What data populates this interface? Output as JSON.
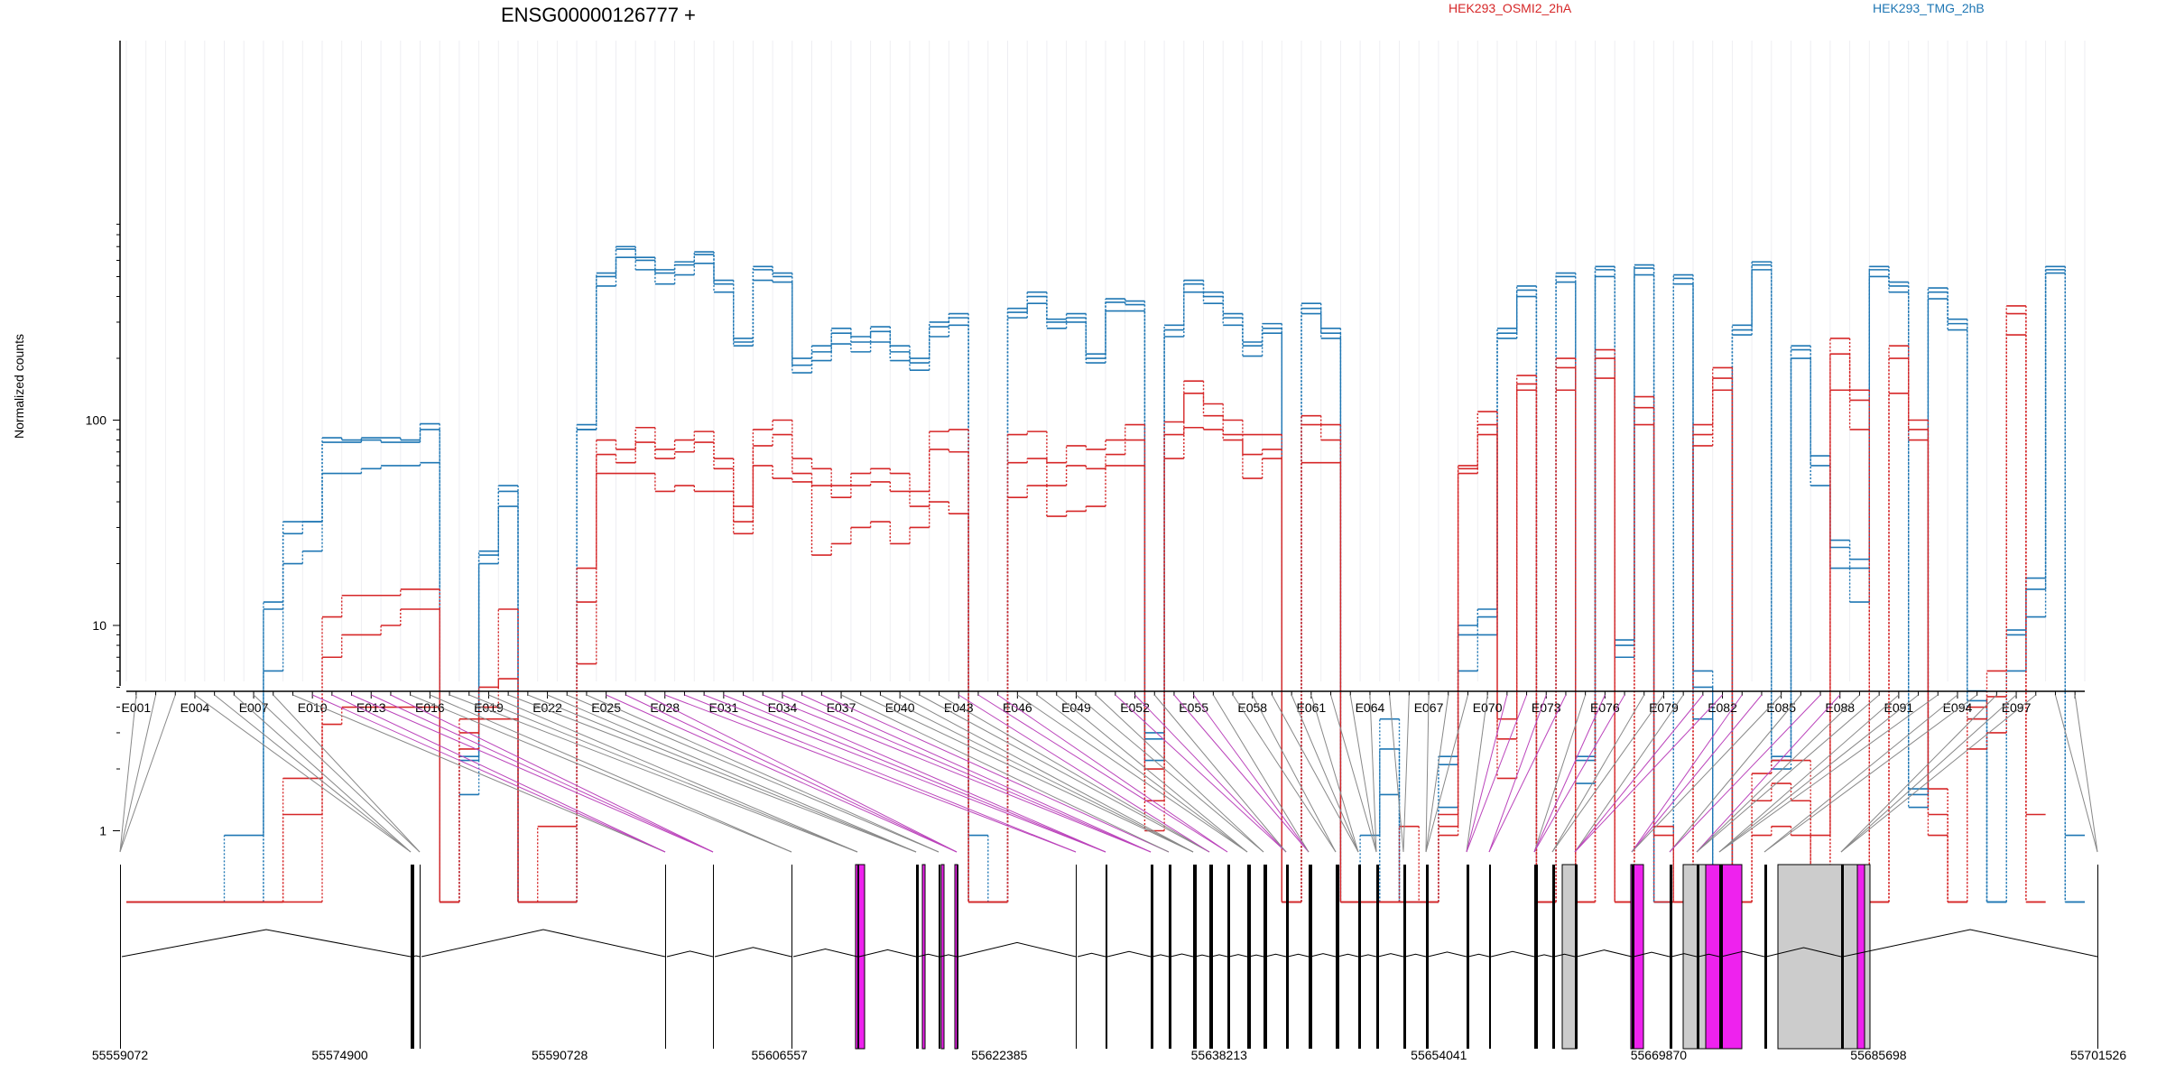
{
  "chart_data": {
    "type": "line",
    "title": "ENSG00000126777 +",
    "ylabel": "Normalized counts",
    "yscale": "log",
    "yticks": [
      "1",
      "10",
      "100"
    ],
    "grid": true,
    "legend": [
      "HEK293_OSMI2_2hA",
      "HEK293_TMG_2hB"
    ],
    "colors": {
      "HEK293_OSMI2_2hA": "#d62728",
      "HEK293_TMG_2hB": "#1f77b4",
      "exon_highlight": "#ee22ee",
      "exon_gray": "#cccccc"
    },
    "exon_labels": [
      "E001",
      "E004",
      "E007",
      "E010",
      "E013",
      "E016",
      "E019",
      "E022",
      "E025",
      "E028",
      "E031",
      "E034",
      "E037",
      "E040",
      "E043",
      "E046",
      "E049",
      "E052",
      "E055",
      "E058",
      "E061",
      "E064",
      "E067",
      "E070",
      "E073",
      "E076",
      "E079",
      "E082",
      "E085",
      "E088",
      "E091",
      "E094",
      "E097"
    ],
    "genomic_ticks": [
      "55559072",
      "55574900",
      "55590728",
      "55606557",
      "55622385",
      "55638213",
      "55654041",
      "55669870",
      "55685698",
      "55701526"
    ],
    "series": [
      {
        "name": "HEK293_TMG_2hB",
        "sample": 1,
        "values": [
          0.45,
          0.45,
          0.45,
          0.45,
          0.45,
          0.45,
          0.45,
          12,
          32,
          32,
          82,
          80,
          82,
          82,
          80,
          96,
          0.45,
          2.3,
          23,
          48,
          0.45,
          0.45,
          0.45,
          95,
          520,
          700,
          620,
          540,
          590,
          660,
          480,
          250,
          560,
          520,
          200,
          230,
          280,
          255,
          285,
          230,
          200,
          300,
          330,
          0.45,
          0.45,
          350,
          420,
          310,
          330,
          210,
          390,
          380,
          3,
          290,
          480,
          420,
          330,
          240,
          295,
          0.45,
          370,
          280,
          0.45,
          0.45,
          3.5,
          0.45,
          0.45,
          2.3,
          10,
          12,
          280,
          450,
          0.45,
          520,
          2.3,
          560,
          8.5,
          570,
          0.45,
          510,
          6,
          0.45,
          290,
          590,
          2.3,
          230,
          67,
          26,
          21,
          560,
          470,
          1.6,
          440,
          310,
          4.8,
          0.45,
          9.5,
          17,
          560,
          0.45
        ]
      },
      {
        "name": "HEK293_TMG_2hB",
        "sample": 2,
        "values": [
          0.45,
          0.45,
          0.45,
          0.45,
          0.45,
          0.95,
          0.95,
          13,
          28,
          32,
          78,
          78,
          80,
          78,
          78,
          90,
          0.45,
          2.2,
          22,
          45,
          0.45,
          0.45,
          0.45,
          90,
          500,
          680,
          600,
          520,
          570,
          640,
          460,
          240,
          540,
          500,
          185,
          215,
          265,
          240,
          270,
          215,
          190,
          285,
          315,
          0.95,
          0.45,
          335,
          400,
          300,
          315,
          200,
          375,
          365,
          2.8,
          275,
          460,
          400,
          315,
          230,
          280,
          0.45,
          350,
          265,
          0.45,
          0.95,
          2.5,
          0.45,
          0.45,
          2.1,
          9,
          11,
          265,
          430,
          0.45,
          500,
          2.2,
          540,
          8,
          550,
          0.45,
          490,
          5,
          0.45,
          275,
          570,
          2.2,
          220,
          60,
          24,
          19,
          540,
          450,
          1.5,
          420,
          295,
          4.3,
          0.45,
          9,
          15,
          540,
          0.95
        ]
      },
      {
        "name": "HEK293_TMG_2hB",
        "sample": 3,
        "values": [
          0.45,
          0.45,
          0.45,
          0.45,
          0.45,
          0.45,
          0.45,
          6,
          20,
          23,
          55,
          55,
          58,
          60,
          60,
          62,
          0.45,
          1.5,
          20,
          38,
          0.45,
          0.45,
          0.45,
          90,
          450,
          620,
          540,
          460,
          510,
          580,
          420,
          230,
          480,
          470,
          170,
          195,
          235,
          215,
          240,
          195,
          175,
          255,
          290,
          0.45,
          0.45,
          315,
          370,
          280,
          300,
          190,
          340,
          340,
          2.2,
          255,
          420,
          370,
          290,
          205,
          265,
          0.45,
          330,
          250,
          0.45,
          0.45,
          1.5,
          0.45,
          0.45,
          1.3,
          6,
          9,
          250,
          400,
          0.45,
          470,
          1.7,
          500,
          7,
          510,
          0.45,
          460,
          3.5,
          0.45,
          260,
          540,
          2,
          200,
          48,
          19,
          13,
          500,
          420,
          1.3,
          390,
          275,
          3.5,
          0.45,
          6,
          11,
          520,
          0.45
        ]
      },
      {
        "name": "HEK293_OSMI2_2hA",
        "sample": 1,
        "values": [
          0.45,
          0.45,
          0.45,
          0.45,
          0.45,
          0.45,
          0.45,
          0.45,
          1.8,
          1.8,
          11,
          14,
          14,
          14,
          15,
          15,
          0.45,
          3.5,
          5,
          12,
          0.45,
          1.05,
          1.05,
          19,
          80,
          72,
          92,
          72,
          80,
          88,
          65,
          38,
          90,
          100,
          65,
          58,
          48,
          55,
          58,
          55,
          45,
          88,
          90,
          0.45,
          0.45,
          85,
          88,
          62,
          75,
          72,
          80,
          95,
          2,
          98,
          155,
          120,
          100,
          85,
          85,
          0.45,
          105,
          95,
          0.45,
          0.45,
          0.45,
          1.05,
          0.45,
          1.2,
          60,
          110,
          3.5,
          165,
          0.45,
          200,
          0.45,
          220,
          0.45,
          130,
          1.05,
          0.45,
          95,
          180,
          0.45,
          1.9,
          2.2,
          2.2,
          0.95,
          250,
          140,
          0.45,
          230,
          100,
          1.6,
          0.45,
          4,
          6,
          360,
          1.2
        ]
      },
      {
        "name": "HEK293_OSMI2_2hA",
        "sample": 2,
        "values": [
          0.45,
          0.45,
          0.45,
          0.45,
          0.45,
          0.45,
          0.45,
          0.45,
          1.2,
          1.2,
          7,
          9,
          9,
          10,
          12,
          12,
          0.45,
          3,
          4,
          5.5,
          0.45,
          0.45,
          0.45,
          13,
          68,
          62,
          78,
          65,
          70,
          78,
          58,
          32,
          75,
          85,
          55,
          48,
          42,
          48,
          50,
          45,
          38,
          72,
          70,
          0.45,
          0.45,
          62,
          65,
          48,
          60,
          58,
          68,
          80,
          1.4,
          85,
          135,
          105,
          85,
          68,
          72,
          0.45,
          95,
          80,
          0.45,
          0.45,
          0.45,
          0.45,
          0.45,
          1.05,
          58,
          95,
          2.8,
          150,
          0.45,
          180,
          0.45,
          200,
          0.45,
          115,
          0.95,
          0.45,
          85,
          160,
          0.45,
          1.4,
          1.7,
          1.4,
          0.45,
          210,
          125,
          0.45,
          200,
          90,
          1.2,
          0.45,
          3.5,
          4.5,
          330,
          0.45
        ]
      },
      {
        "name": "HEK293_OSMI2_2hA",
        "sample": 3,
        "values": [
          0.45,
          0.45,
          0.45,
          0.45,
          0.45,
          0.45,
          0.45,
          0.45,
          0.45,
          0.45,
          3.3,
          4,
          4,
          4,
          4,
          4,
          0.45,
          2.5,
          3.5,
          3.5,
          0.45,
          0.45,
          0.45,
          6.5,
          55,
          55,
          55,
          45,
          48,
          45,
          45,
          28,
          60,
          52,
          50,
          22,
          25,
          30,
          32,
          25,
          30,
          40,
          35,
          0.45,
          0.45,
          42,
          48,
          34,
          36,
          38,
          60,
          60,
          1,
          65,
          92,
          90,
          80,
          52,
          65,
          0.45,
          62,
          62,
          0.45,
          0.45,
          0.45,
          0.45,
          0.45,
          0.95,
          55,
          85,
          1.8,
          140,
          0.45,
          140,
          0.45,
          160,
          0.45,
          95,
          0.45,
          0.45,
          75,
          140,
          0.45,
          0.95,
          1.05,
          0.95,
          0.45,
          140,
          90,
          0.45,
          135,
          80,
          0.95,
          0.45,
          2.5,
          3,
          260,
          0.45
        ]
      }
    ]
  }
}
